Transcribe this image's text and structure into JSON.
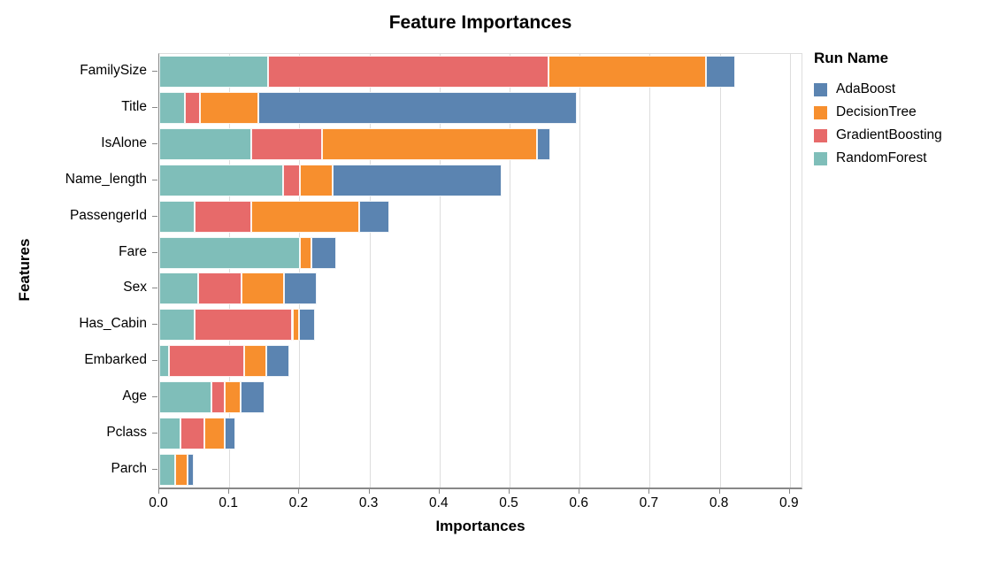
{
  "background": "#ffffff",
  "legend": {
    "title": "Run Name",
    "entries": [
      {
        "label": "AdaBoost",
        "color": "#5b84b1"
      },
      {
        "label": "DecisionTree",
        "color": "#f78f2e"
      },
      {
        "label": "GradientBoosting",
        "color": "#e76a6a"
      },
      {
        "label": "RandomForest",
        "color": "#7fbeb9"
      }
    ]
  },
  "axis_style": {
    "grid_color": "#dddddd",
    "domain_color": "#888888",
    "label_color": "#000000"
  },
  "chart_data": {
    "type": "bar",
    "orientation": "horizontal",
    "stacked": true,
    "title": "Feature Importances",
    "xlabel": "Importances",
    "ylabel": "Features",
    "xlim": [
      0,
      0.916
    ],
    "x_ticks": [
      0.0,
      0.1,
      0.2,
      0.3,
      0.4,
      0.5,
      0.6,
      0.7,
      0.8,
      0.9
    ],
    "x_tick_labels": [
      "0.0",
      "0.1",
      "0.2",
      "0.3",
      "0.4",
      "0.5",
      "0.6",
      "0.7",
      "0.8",
      "0.9"
    ],
    "grid": true,
    "legend_position": "top-right",
    "categories": [
      "FamilySize",
      "Title",
      "IsAlone",
      "Name_length",
      "PassengerId",
      "Fare",
      "Sex",
      "Has_Cabin",
      "Embarked",
      "Age",
      "Pclass",
      "Parch"
    ],
    "series": [
      {
        "name": "RandomForest",
        "color": "#7fbeb9",
        "values": [
          0.155,
          0.036,
          0.131,
          0.177,
          0.05,
          0.201,
          0.056,
          0.051,
          0.014,
          0.074,
          0.03,
          0.023
        ]
      },
      {
        "name": "GradientBoosting",
        "color": "#e76a6a",
        "values": [
          0.4,
          0.022,
          0.101,
          0.024,
          0.081,
          0.0,
          0.061,
          0.139,
          0.107,
          0.02,
          0.034,
          0.0
        ]
      },
      {
        "name": "DecisionTree",
        "color": "#f78f2e",
        "values": [
          0.225,
          0.083,
          0.307,
          0.046,
          0.154,
          0.016,
          0.061,
          0.009,
          0.032,
          0.022,
          0.029,
          0.017
        ]
      },
      {
        "name": "AdaBoost",
        "color": "#5b84b1",
        "values": [
          0.042,
          0.455,
          0.019,
          0.242,
          0.044,
          0.035,
          0.047,
          0.023,
          0.033,
          0.034,
          0.016,
          0.009
        ]
      }
    ]
  }
}
